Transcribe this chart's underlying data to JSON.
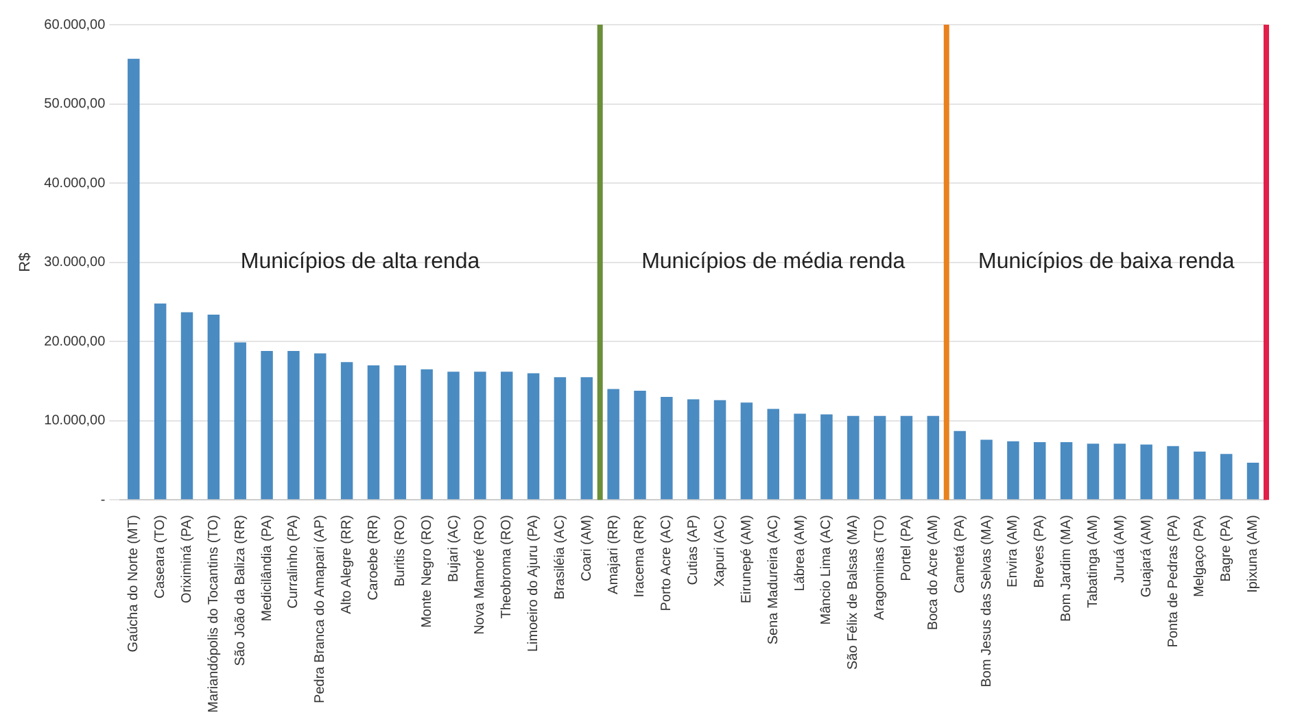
{
  "chart_data": {
    "type": "bar",
    "ylabel": "R$",
    "categories": [
      "Gaúcha do Norte (MT)",
      "Caseara (TO)",
      "Oriximiná (PA)",
      "Mariandópolis do Tocantins (TO)",
      "São João da Baliza (RR)",
      "Medicilândia (PA)",
      "Curralinho (PA)",
      "Pedra Branca do Amapari (AP)",
      "Alto Alegre (RR)",
      "Caroebe (RR)",
      "Buritis (RO)",
      "Monte Negro (RO)",
      "Bujari (AC)",
      "Nova Mamoré (RO)",
      "Theobroma (RO)",
      "Limoeiro do Ajuru (PA)",
      "Brasiléia (AC)",
      "Coari (AM)",
      "Amajari (RR)",
      "Iracema (RR)",
      "Porto Acre (AC)",
      "Cutias (AP)",
      "Xapuri (AC)",
      "Eirunepé (AM)",
      "Sena Madureira (AC)",
      "Lábrea (AM)",
      "Mâncio Lima (AC)",
      "São Félix de Balsas (MA)",
      "Aragominas (TO)",
      "Portel (PA)",
      "Boca do Acre (AM)",
      "Cametá (PA)",
      "Bom Jesus das Selvas (MA)",
      "Envira (AM)",
      "Breves (PA)",
      "Bom Jardim (MA)",
      "Tabatinga (AM)",
      "Juruá (AM)",
      "Guajará (AM)",
      "Ponta de Pedras (PA)",
      "Melgaço (PA)",
      "Bagre (PA)",
      "Ipixuna (AM)"
    ],
    "values": [
      55700,
      24800,
      23700,
      23400,
      19900,
      18800,
      18800,
      18500,
      17400,
      17000,
      17000,
      16500,
      16200,
      16200,
      16200,
      16000,
      15500,
      15500,
      14000,
      13800,
      13000,
      12700,
      12600,
      12300,
      11500,
      10900,
      10800,
      10600,
      10600,
      10600,
      10600,
      8700,
      7600,
      7400,
      7300,
      7300,
      7100,
      7100,
      7000,
      6800,
      6100,
      5800,
      4700
    ],
    "color": "#4a8bc2",
    "ylim": [
      0,
      60000
    ],
    "yticks": [
      {
        "value": 0,
        "label": "-"
      },
      {
        "value": 10000,
        "label": "10.000,00"
      },
      {
        "value": 20000,
        "label": "20.000,00"
      },
      {
        "value": 30000,
        "label": "30.000,00"
      },
      {
        "value": 40000,
        "label": "40.000,00"
      },
      {
        "value": 50000,
        "label": "50.000,00"
      },
      {
        "value": 60000,
        "label": "60.000,00"
      }
    ],
    "grid": "y",
    "legend": false,
    "ref_lines": [
      {
        "axis": "x",
        "value": "Coari (AM)",
        "color": "#6b8e3a"
      },
      {
        "axis": "x",
        "value": "Boca do Acre (AM)",
        "color": "#e8821e"
      },
      {
        "axis": "x",
        "value": "Ipixuna (AM)",
        "color": "#e0204a"
      }
    ],
    "annotations": [
      "Municípios de alta renda",
      "Municípios de média renda",
      "Municípios de baixa renda"
    ]
  }
}
